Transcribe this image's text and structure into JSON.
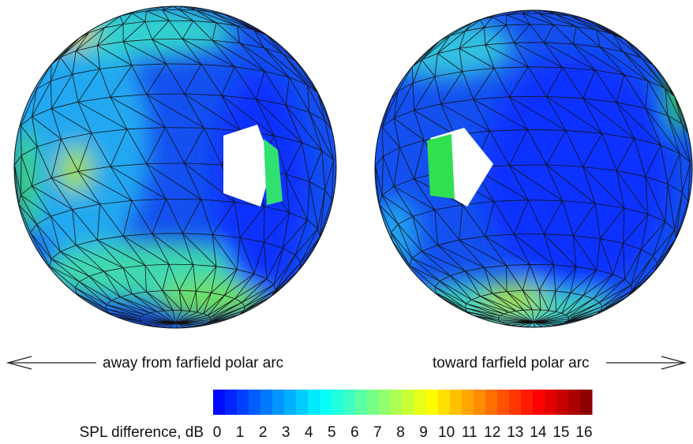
{
  "annotations": {
    "left": "away from farfield polar arc",
    "right": "toward farfield polar arc"
  },
  "colorbar": {
    "label": "SPL difference, dB",
    "ticks": [
      0,
      1,
      2,
      3,
      4,
      5,
      6,
      7,
      8,
      9,
      10,
      11,
      12,
      13,
      14,
      15,
      16
    ]
  }
}
